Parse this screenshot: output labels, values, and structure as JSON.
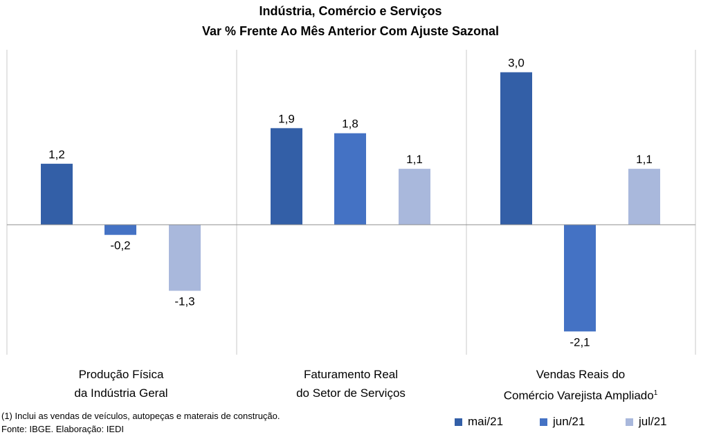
{
  "chart_data": {
    "type": "bar",
    "title": "Indústria, Comércio e Serviços",
    "subtitle": "Var % Frente Ao Mês Anterior Com Ajuste Sazonal",
    "categories": [
      {
        "line1": "Produção Física",
        "line2": "da Indústria Geral",
        "sup": ""
      },
      {
        "line1": "Faturamento Real",
        "line2": "do Setor de Serviços",
        "sup": ""
      },
      {
        "line1": "Vendas Reais do",
        "line2": "Comércio Varejista Ampliado",
        "sup": "1"
      }
    ],
    "series": [
      {
        "name": "mai/21",
        "color": "#335fa7",
        "values": [
          1.2,
          1.9,
          3.0
        ],
        "labels": [
          "1,2",
          "1,9",
          "3,0"
        ]
      },
      {
        "name": "jun/21",
        "color": "#4472c4",
        "values": [
          -0.2,
          1.8,
          -2.1
        ],
        "labels": [
          "-0,2",
          "1,8",
          "-2,1"
        ]
      },
      {
        "name": "jul/21",
        "color": "#a9b8dc",
        "values": [
          -1.3,
          1.1,
          1.1
        ],
        "labels": [
          "-1,3",
          "1,1",
          "1,1"
        ]
      }
    ],
    "ylim": [
      -2.6,
      3.5
    ],
    "grid": false,
    "legend_position": "bottom-right"
  },
  "footnotes": {
    "note1": "(1) Inclui as vendas de veículos, autopeças e materais de construção.",
    "source": "Fonte: IBGE. Elaboração: IEDI"
  }
}
